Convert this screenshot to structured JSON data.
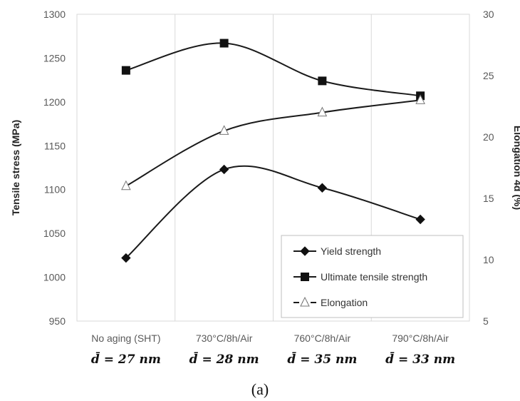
{
  "chart_data": {
    "type": "line",
    "categories": [
      "No aging (SHT)",
      "730°C/8h/Air",
      "760°C/8h/Air",
      "790°C/8h/Air"
    ],
    "category_sublabels": [
      "d̄ = 27 nm",
      "d̄ = 28 nm",
      "d̄ = 35 nm",
      "d̄ = 33 nm"
    ],
    "ylabel": "Tensile stress (MPa)",
    "y2label": "Elongation 4d (%)",
    "ylim": [
      950,
      1300
    ],
    "y2lim": [
      5,
      30
    ],
    "yticks": [
      950,
      1000,
      1050,
      1100,
      1150,
      1200,
      1250,
      1300
    ],
    "y2ticks": [
      5,
      10,
      15,
      20,
      25,
      30
    ],
    "grid": "vertical",
    "legend_position": "bottom-right",
    "series": [
      {
        "name": "Yield strength",
        "axis": "left",
        "marker": "diamond",
        "values": [
          1022,
          1123,
          1102,
          1066
        ]
      },
      {
        "name": "Ultimate tensile strength",
        "axis": "left",
        "marker": "square",
        "values": [
          1236,
          1267,
          1224,
          1207
        ]
      },
      {
        "name": "Elongation",
        "axis": "right",
        "marker": "triangle-open",
        "values": [
          16.0,
          20.5,
          22.0,
          23.0
        ]
      }
    ],
    "caption": "(a)"
  }
}
